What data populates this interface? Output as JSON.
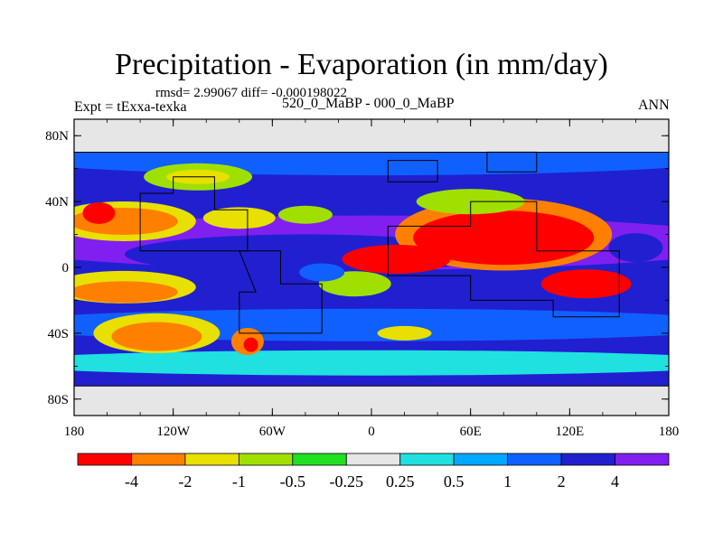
{
  "chart_data": {
    "type": "heatmap",
    "title": "Precipitation - Evaporation (in mm/day)",
    "stats_line": "rmsd= 2.99067  diff= -0.000198022",
    "left_label": "Expt = tExxa-texka",
    "center_label": "520_0_MaBP - 000_0_MaBP",
    "right_label": "ANN",
    "x_ticks": [
      "180",
      "120W",
      "60W",
      "0",
      "60E",
      "120E",
      "180"
    ],
    "y_ticks": [
      "80N",
      "40N",
      "0",
      "40S",
      "80S"
    ],
    "xlim": [
      -180,
      180
    ],
    "ylim": [
      -90,
      90
    ],
    "colorbar_labels": [
      "-4",
      "-2",
      "-1",
      "-0.5",
      "-0.25",
      "0.25",
      "0.5",
      "1",
      "2",
      "4"
    ],
    "colorbar_colors": [
      "#ff0000",
      "#ff8000",
      "#e8e000",
      "#a0e000",
      "#20e020",
      "#e6e6e6",
      "#20e0e0",
      "#00a8ff",
      "#1060ff",
      "#2020d0",
      "#8020f0"
    ]
  }
}
